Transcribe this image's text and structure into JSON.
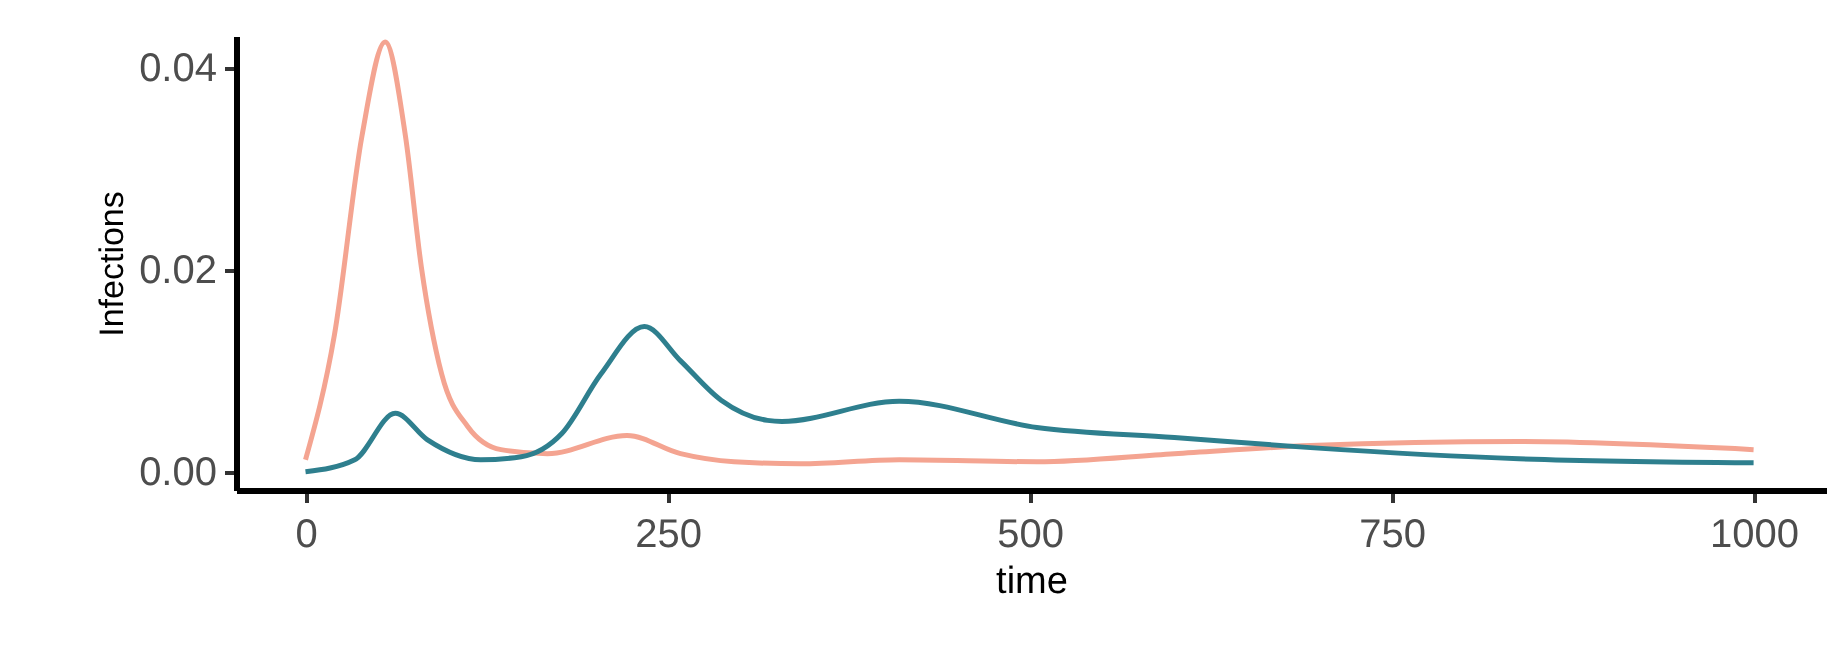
{
  "chart_data": {
    "type": "line",
    "xlabel": "time",
    "ylabel": "Infections",
    "xlim": [
      -48,
      1050
    ],
    "ylim": [
      -0.0018,
      0.0432
    ],
    "xticks": [
      0,
      250,
      500,
      750,
      1000
    ],
    "yticks": [
      {
        "value": 0,
        "label": "0.00"
      },
      {
        "value": 0.02,
        "label": "0.02"
      },
      {
        "value": 0.04,
        "label": "0.04"
      }
    ],
    "grid": false,
    "marker": "none",
    "line_style": "solid",
    "series": [
      {
        "color": "#f4a491",
        "x": [
          0,
          20,
          39,
          55,
          69,
          80,
          94,
          112,
          135,
          167,
          222,
          259,
          296,
          342,
          410,
          505,
          600,
          694,
          838,
          1000
        ],
        "values": [
          0.0012,
          0.0136,
          0.0333,
          0.0426,
          0.0333,
          0.0203,
          0.0097,
          0.0045,
          0.0022,
          0.0018,
          0.0036,
          0.0018,
          0.001,
          0.0008,
          0.0012,
          0.001,
          0.0018,
          0.0026,
          0.003,
          0.0022
        ]
      },
      {
        "color": "#2e7f8e",
        "x": [
          0,
          34,
          62,
          84,
          121,
          149,
          177,
          204,
          234,
          259,
          287,
          319,
          329,
          410,
          505,
          600,
          694,
          838,
          1000
        ],
        "values": [
          0.0,
          0.0012,
          0.0058,
          0.0032,
          0.0012,
          0.0015,
          0.0038,
          0.0097,
          0.0144,
          0.011,
          0.0071,
          0.0051,
          0.005,
          0.007,
          0.0044,
          0.0034,
          0.0024,
          0.0013,
          0.0009
        ]
      }
    ]
  }
}
